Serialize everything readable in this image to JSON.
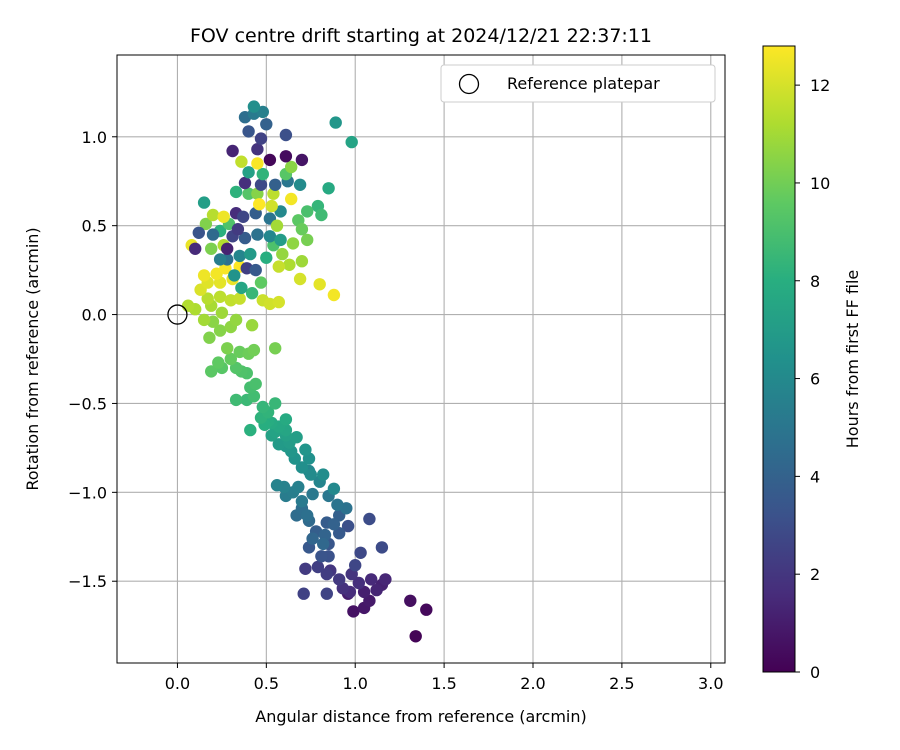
{
  "chart_data": {
    "type": "scatter",
    "title": "FOV centre drift starting at 2024/12/21 22:37:11",
    "xlabel": "Angular distance from reference (arcmin)",
    "ylabel": "Rotation from reference (arcmin)",
    "xlim": [
      -0.34,
      3.08
    ],
    "ylim": [
      -1.96,
      1.46
    ],
    "xticks": [
      "0.0",
      "0.5",
      "1.0",
      "1.5",
      "2.0",
      "2.5",
      "3.0"
    ],
    "xtick_values": [
      0,
      0.5,
      1.0,
      1.5,
      2.0,
      2.5,
      3.0
    ],
    "yticks": [
      "−1.5",
      "−1.0",
      "−0.5",
      "0.0",
      "0.5",
      "1.0"
    ],
    "ytick_values": [
      -1.5,
      -1.0,
      -0.5,
      0,
      0.5,
      1.0
    ],
    "grid": true,
    "legend_position": "top-right",
    "legend": [
      {
        "label": "Reference platepar",
        "marker": "open-circle"
      }
    ],
    "reference_point": {
      "x": 0.0,
      "y": 0.0
    },
    "colorbar": {
      "label": "Hours from first FF file",
      "colormap": "viridis",
      "range": [
        0,
        12.8
      ],
      "ticks": [
        "0",
        "2",
        "4",
        "6",
        "8",
        "10",
        "12"
      ],
      "tick_values": [
        0,
        2,
        4,
        6,
        8,
        10,
        12
      ]
    },
    "points": [
      [
        1.34,
        -1.81,
        0.1
      ],
      [
        1.4,
        -1.66,
        0.3
      ],
      [
        1.31,
        -1.61,
        0.5
      ],
      [
        0.99,
        -1.67,
        0.6
      ],
      [
        1.05,
        -1.65,
        0.8
      ],
      [
        1.08,
        -1.61,
        0.9
      ],
      [
        0.96,
        -1.57,
        1.0
      ],
      [
        1.05,
        -1.56,
        1.1
      ],
      [
        1.15,
        -1.52,
        1.2
      ],
      [
        1.12,
        -1.55,
        1.3
      ],
      [
        1.17,
        -1.49,
        1.4
      ],
      [
        1.09,
        -1.49,
        1.5
      ],
      [
        0.97,
        -1.56,
        1.6
      ],
      [
        1.02,
        -1.51,
        1.7
      ],
      [
        0.93,
        -1.54,
        1.8
      ],
      [
        0.98,
        -1.46,
        1.9
      ],
      [
        0.86,
        -1.44,
        2.0
      ],
      [
        0.91,
        -1.49,
        2.1
      ],
      [
        0.72,
        -1.43,
        2.2
      ],
      [
        0.84,
        -1.46,
        2.3
      ],
      [
        0.79,
        -1.42,
        2.4
      ],
      [
        0.71,
        -1.57,
        2.5
      ],
      [
        0.84,
        -1.57,
        2.6
      ],
      [
        1.0,
        -1.41,
        2.7
      ],
      [
        1.03,
        -1.34,
        2.8
      ],
      [
        1.15,
        -1.31,
        2.9
      ],
      [
        1.08,
        -1.15,
        3.0
      ],
      [
        0.96,
        -1.19,
        3.1
      ],
      [
        0.85,
        -1.36,
        3.2
      ],
      [
        0.81,
        -1.36,
        3.3
      ],
      [
        0.85,
        -1.29,
        3.4
      ],
      [
        0.74,
        -1.31,
        3.5
      ],
      [
        0.91,
        -1.23,
        3.6
      ],
      [
        0.84,
        -1.17,
        3.7
      ],
      [
        0.78,
        -1.22,
        3.8
      ],
      [
        0.91,
        -1.13,
        3.9
      ],
      [
        0.88,
        -1.18,
        4.0
      ],
      [
        0.83,
        -1.24,
        4.1
      ],
      [
        0.76,
        -1.26,
        4.2
      ],
      [
        0.82,
        -1.29,
        4.3
      ],
      [
        0.74,
        -1.16,
        4.4
      ],
      [
        0.67,
        -1.13,
        4.5
      ],
      [
        0.7,
        -1.09,
        4.6
      ],
      [
        0.73,
        -1.13,
        4.7
      ],
      [
        0.95,
        -1.09,
        4.8
      ],
      [
        0.9,
        -1.07,
        4.9
      ],
      [
        0.85,
        -1.02,
        5.0
      ],
      [
        0.76,
        -1.01,
        5.1
      ],
      [
        0.7,
        -1.05,
        5.2
      ],
      [
        0.61,
        -1.02,
        5.3
      ],
      [
        0.65,
        -1.0,
        5.4
      ],
      [
        0.68,
        -0.97,
        5.5
      ],
      [
        0.6,
        -0.97,
        5.6
      ],
      [
        0.56,
        -0.96,
        5.7
      ],
      [
        0.8,
        -0.94,
        5.8
      ],
      [
        0.74,
        -0.88,
        5.9
      ],
      [
        0.88,
        -0.98,
        6.0
      ],
      [
        0.75,
        -0.9,
        6.1
      ],
      [
        0.82,
        -0.9,
        6.2
      ],
      [
        0.7,
        -0.86,
        6.3
      ],
      [
        0.74,
        -0.81,
        6.4
      ],
      [
        0.66,
        -0.81,
        6.5
      ],
      [
        0.72,
        -0.76,
        6.6
      ],
      [
        0.64,
        -0.77,
        6.7
      ],
      [
        0.61,
        -0.74,
        6.8
      ],
      [
        0.57,
        -0.73,
        6.9
      ],
      [
        0.63,
        -0.72,
        7.0
      ],
      [
        0.67,
        -0.69,
        7.1
      ],
      [
        0.61,
        -0.68,
        7.2
      ],
      [
        0.53,
        -0.68,
        7.3
      ],
      [
        0.55,
        -0.66,
        7.4
      ],
      [
        0.61,
        -0.65,
        7.5
      ],
      [
        0.57,
        -0.63,
        7.6
      ],
      [
        0.53,
        -0.61,
        7.7
      ],
      [
        0.61,
        -0.59,
        7.8
      ],
      [
        0.51,
        -0.6,
        7.9
      ],
      [
        0.49,
        -0.62,
        8.0
      ],
      [
        0.41,
        -0.65,
        8.1
      ],
      [
        0.47,
        -0.58,
        8.2
      ],
      [
        0.51,
        -0.55,
        8.3
      ],
      [
        0.48,
        -0.52,
        8.4
      ],
      [
        0.55,
        -0.5,
        8.5
      ],
      [
        0.39,
        -0.48,
        8.6
      ],
      [
        0.33,
        -0.48,
        8.7
      ],
      [
        0.43,
        -0.46,
        8.8
      ],
      [
        0.41,
        -0.41,
        8.9
      ],
      [
        0.44,
        -0.39,
        9.0
      ],
      [
        0.39,
        -0.33,
        9.1
      ],
      [
        0.36,
        -0.32,
        9.2
      ],
      [
        0.33,
        -0.3,
        9.3
      ],
      [
        0.25,
        -0.3,
        9.4
      ],
      [
        0.19,
        -0.32,
        9.5
      ],
      [
        0.23,
        -0.27,
        9.6
      ],
      [
        0.3,
        -0.25,
        9.7
      ],
      [
        0.35,
        -0.21,
        9.8
      ],
      [
        0.4,
        -0.22,
        9.9
      ],
      [
        0.43,
        -0.2,
        10.0
      ],
      [
        0.55,
        -0.19,
        10.1
      ],
      [
        0.28,
        -0.19,
        10.2
      ],
      [
        0.18,
        -0.13,
        10.3
      ],
      [
        0.24,
        -0.09,
        10.4
      ],
      [
        0.2,
        -0.04,
        10.5
      ],
      [
        0.3,
        -0.07,
        10.6
      ],
      [
        0.33,
        -0.03,
        10.7
      ],
      [
        0.42,
        -0.06,
        10.8
      ],
      [
        0.25,
        0.01,
        10.9
      ],
      [
        0.15,
        -0.03,
        11.0
      ],
      [
        0.19,
        0.05,
        11.1
      ],
      [
        0.1,
        0.03,
        11.2
      ],
      [
        0.06,
        0.05,
        11.3
      ],
      [
        0.17,
        0.09,
        11.4
      ],
      [
        0.24,
        0.1,
        11.5
      ],
      [
        0.3,
        0.08,
        11.6
      ],
      [
        0.35,
        0.09,
        11.7
      ],
      [
        0.48,
        0.08,
        11.8
      ],
      [
        0.52,
        0.06,
        11.9
      ],
      [
        0.57,
        0.07,
        12.0
      ],
      [
        0.13,
        0.14,
        12.1
      ],
      [
        0.17,
        0.18,
        12.2
      ],
      [
        0.24,
        0.18,
        12.3
      ],
      [
        0.31,
        0.2,
        12.4
      ],
      [
        0.15,
        0.22,
        12.5
      ],
      [
        0.22,
        0.23,
        12.6
      ],
      [
        0.27,
        0.26,
        12.7
      ],
      [
        0.35,
        0.27,
        12.8
      ],
      [
        0.39,
        0.26,
        2.4
      ],
      [
        0.44,
        0.25,
        3.6
      ],
      [
        0.28,
        0.31,
        4.7
      ],
      [
        0.35,
        0.33,
        5.8
      ],
      [
        0.41,
        0.34,
        6.9
      ],
      [
        0.5,
        0.32,
        8.0
      ],
      [
        0.54,
        0.39,
        9.1
      ],
      [
        0.19,
        0.37,
        10.2
      ],
      [
        0.26,
        0.39,
        11.3
      ],
      [
        0.08,
        0.39,
        12.4
      ],
      [
        0.1,
        0.37,
        1.5
      ],
      [
        0.31,
        0.44,
        2.6
      ],
      [
        0.38,
        0.43,
        3.7
      ],
      [
        0.45,
        0.45,
        4.8
      ],
      [
        0.52,
        0.44,
        5.9
      ],
      [
        0.58,
        0.42,
        7.0
      ],
      [
        0.24,
        0.47,
        8.1
      ],
      [
        0.29,
        0.51,
        9.2
      ],
      [
        0.16,
        0.51,
        10.3
      ],
      [
        0.2,
        0.56,
        11.4
      ],
      [
        0.26,
        0.55,
        12.5
      ],
      [
        0.33,
        0.57,
        1.6
      ],
      [
        0.37,
        0.55,
        2.7
      ],
      [
        0.44,
        0.57,
        3.8
      ],
      [
        0.52,
        0.54,
        4.9
      ],
      [
        0.58,
        0.58,
        6.0
      ],
      [
        0.15,
        0.63,
        7.1
      ],
      [
        0.33,
        0.69,
        8.2
      ],
      [
        0.4,
        0.68,
        9.3
      ],
      [
        0.45,
        0.68,
        10.4
      ],
      [
        0.54,
        0.68,
        11.5
      ],
      [
        0.64,
        0.65,
        12.6
      ],
      [
        0.38,
        0.74,
        1.7
      ],
      [
        0.47,
        0.73,
        2.8
      ],
      [
        0.55,
        0.73,
        3.9
      ],
      [
        0.62,
        0.75,
        5.0
      ],
      [
        0.69,
        0.73,
        6.1
      ],
      [
        0.4,
        0.8,
        7.2
      ],
      [
        0.48,
        0.79,
        8.3
      ],
      [
        0.61,
        0.79,
        9.4
      ],
      [
        0.64,
        0.83,
        10.5
      ],
      [
        0.36,
        0.86,
        11.6
      ],
      [
        0.45,
        0.85,
        12.7
      ],
      [
        0.52,
        0.87,
        0.2
      ],
      [
        0.61,
        0.89,
        0.4
      ],
      [
        0.7,
        0.87,
        0.7
      ],
      [
        0.31,
        0.92,
        1.3
      ],
      [
        0.45,
        0.93,
        1.9
      ],
      [
        0.47,
        0.99,
        2.5
      ],
      [
        0.61,
        1.01,
        3.1
      ],
      [
        0.4,
        1.03,
        3.4
      ],
      [
        0.5,
        1.07,
        4.0
      ],
      [
        0.38,
        1.11,
        4.6
      ],
      [
        0.43,
        1.13,
        5.2
      ],
      [
        0.48,
        1.14,
        5.5
      ],
      [
        0.43,
        1.17,
        6.3
      ],
      [
        0.89,
        1.08,
        6.7
      ],
      [
        0.98,
        0.97,
        7.4
      ],
      [
        0.85,
        0.71,
        7.7
      ],
      [
        0.79,
        0.61,
        8.4
      ],
      [
        0.81,
        0.56,
        8.7
      ],
      [
        0.73,
        0.58,
        9.0
      ],
      [
        0.68,
        0.53,
        9.5
      ],
      [
        0.7,
        0.48,
        9.8
      ],
      [
        0.73,
        0.42,
        10.1
      ],
      [
        0.65,
        0.4,
        10.6
      ],
      [
        0.7,
        0.3,
        10.9
      ],
      [
        0.63,
        0.28,
        11.2
      ],
      [
        0.57,
        0.27,
        11.7
      ],
      [
        0.69,
        0.2,
        12.0
      ],
      [
        0.8,
        0.17,
        12.3
      ],
      [
        0.88,
        0.11,
        12.6
      ],
      [
        0.46,
        0.62,
        12.8
      ],
      [
        0.53,
        0.61,
        11.9
      ],
      [
        0.56,
        0.5,
        11.0
      ],
      [
        0.59,
        0.34,
        10.7
      ],
      [
        0.47,
        0.18,
        9.6
      ],
      [
        0.42,
        0.12,
        8.5
      ],
      [
        0.36,
        0.15,
        7.5
      ],
      [
        0.32,
        0.22,
        6.5
      ],
      [
        0.24,
        0.31,
        5.4
      ],
      [
        0.2,
        0.45,
        4.4
      ],
      [
        0.12,
        0.46,
        3.3
      ],
      [
        0.34,
        0.48,
        2.2
      ],
      [
        0.28,
        0.37,
        1.2
      ]
    ]
  }
}
